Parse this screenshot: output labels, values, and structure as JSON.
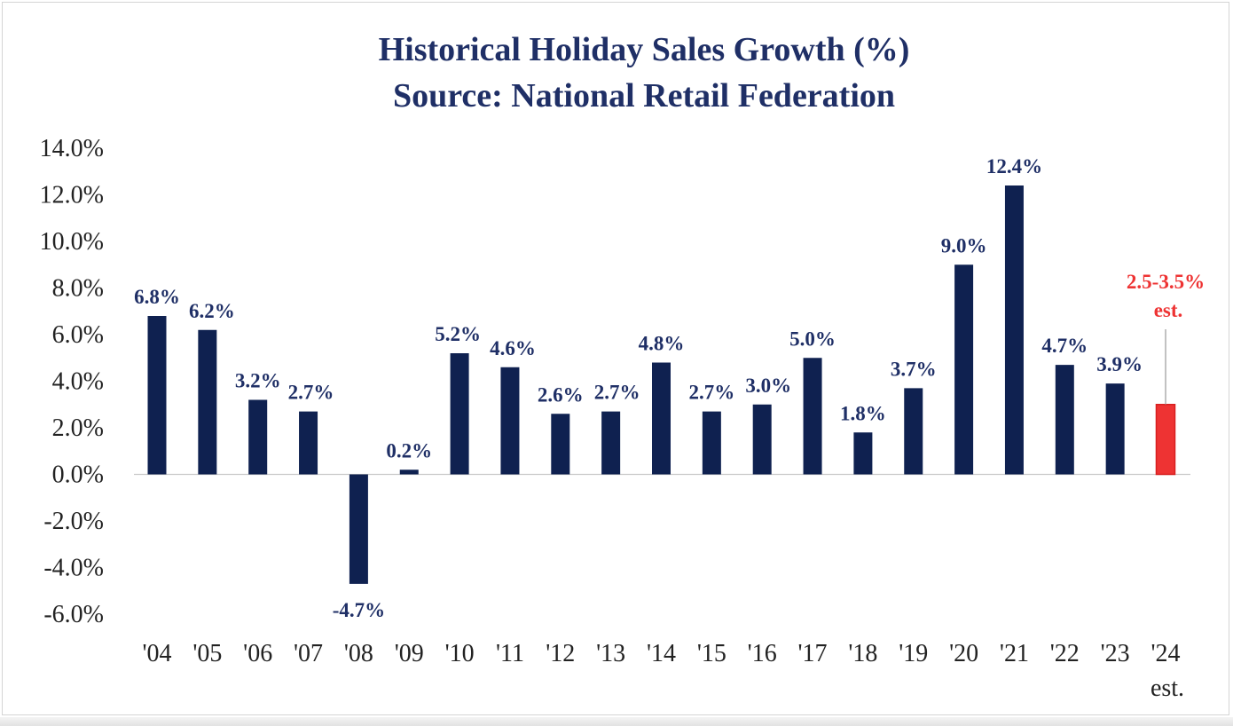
{
  "chart_data": {
    "type": "bar",
    "title": "Historical Holiday Sales Growth (%)",
    "subtitle": "Source: National Retail Federation",
    "xlabel": "",
    "ylabel": "",
    "ylim": [
      -6,
      14
    ],
    "yticks": [
      "14.0%",
      "12.0%",
      "10.0%",
      "8.0%",
      "6.0%",
      "4.0%",
      "2.0%",
      "0.0%",
      "-2.0%",
      "-4.0%",
      "-6.0%"
    ],
    "categories": [
      "'04",
      "'05",
      "'06",
      "'07",
      "'08",
      "'09",
      "'10",
      "'11",
      "'12",
      "'13",
      "'14",
      "'15",
      "'16",
      "'17",
      "'18",
      "'19",
      "'20",
      "'21",
      "'22",
      "'23",
      "'24"
    ],
    "category_suffix": {
      "index": 20,
      "text": "est."
    },
    "values": [
      6.8,
      6.2,
      3.2,
      2.7,
      -4.7,
      0.2,
      5.2,
      4.6,
      2.6,
      2.7,
      4.8,
      2.7,
      3.0,
      5.0,
      1.8,
      3.7,
      9.0,
      12.4,
      4.7,
      3.9,
      3.0
    ],
    "estimate_range": {
      "index": 20,
      "low": 2.5,
      "high": 3.5
    },
    "data_labels": [
      "6.8%",
      "6.2%",
      "3.2%",
      "2.7%",
      "-4.7%",
      "0.2%",
      "5.2%",
      "4.6%",
      "2.6%",
      "2.7%",
      "4.8%",
      "2.7%",
      "3.0%",
      "5.0%",
      "1.8%",
      "3.7%",
      "9.0%",
      "12.4%",
      "4.7%",
      "3.9%",
      "2.5-3.5%"
    ],
    "estimate_label_suffix": "est.",
    "grid": false,
    "legend": "none",
    "colors": {
      "bars": "#0f2150",
      "estimate": "#ee3333",
      "label": "#1f2f66",
      "estimate_label": "#ee3333"
    }
  }
}
